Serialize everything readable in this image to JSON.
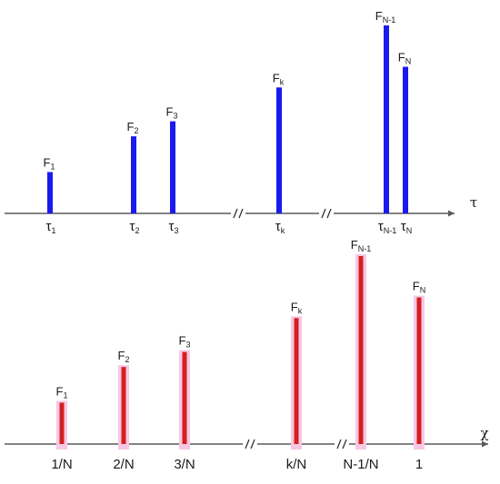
{
  "top_panel": {
    "axis_label": "τ",
    "colors": {
      "spike": "#1a1aee",
      "axis": "#5a5a5a"
    },
    "spikes": [
      {
        "id": "1",
        "height_label": {
          "base": "F",
          "sub": "1"
        },
        "tick_label": {
          "base": "τ",
          "sub": "1"
        },
        "value": 0.22
      },
      {
        "id": "2",
        "height_label": {
          "base": "F",
          "sub": "2"
        },
        "tick_label": {
          "base": "τ",
          "sub": "2"
        },
        "value": 0.41
      },
      {
        "id": "3",
        "height_label": {
          "base": "F",
          "sub": "3"
        },
        "tick_label": {
          "base": "τ",
          "sub": "3"
        },
        "value": 0.49
      },
      {
        "id": "k",
        "height_label": {
          "base": "F",
          "sub": "k"
        },
        "tick_label": {
          "base": "τ",
          "sub": "k"
        },
        "value": 0.67
      },
      {
        "id": "n-1",
        "height_label": {
          "base": "F",
          "sub": "N-1"
        },
        "tick_label": {
          "base": "τ",
          "sub": "N-1"
        },
        "value": 1.0
      },
      {
        "id": "n",
        "height_label": {
          "base": "F",
          "sub": "N"
        },
        "tick_label": {
          "base": "τ",
          "sub": "N"
        },
        "value": 0.78
      }
    ]
  },
  "bottom_panel": {
    "axis_label": "χ",
    "colors": {
      "spike": "#d42020",
      "glow": "#f6c8e4",
      "axis": "#5a5a5a"
    },
    "spikes": [
      {
        "id": "1",
        "height_label": {
          "base": "F",
          "sub": "1"
        },
        "tick_label": "1/N",
        "value": 0.22
      },
      {
        "id": "2",
        "height_label": {
          "base": "F",
          "sub": "2"
        },
        "tick_label": "2/N",
        "value": 0.41
      },
      {
        "id": "3",
        "height_label": {
          "base": "F",
          "sub": "3"
        },
        "tick_label": "3/N",
        "value": 0.49
      },
      {
        "id": "k",
        "height_label": {
          "base": "F",
          "sub": "k"
        },
        "tick_label": "k/N",
        "value": 0.67
      },
      {
        "id": "n-1",
        "height_label": {
          "base": "F",
          "sub": "N-1"
        },
        "tick_label": "N-1/N",
        "value": 1.0
      },
      {
        "id": "n",
        "height_label": {
          "base": "F",
          "sub": "N"
        },
        "tick_label": "1",
        "value": 0.78
      }
    ]
  }
}
